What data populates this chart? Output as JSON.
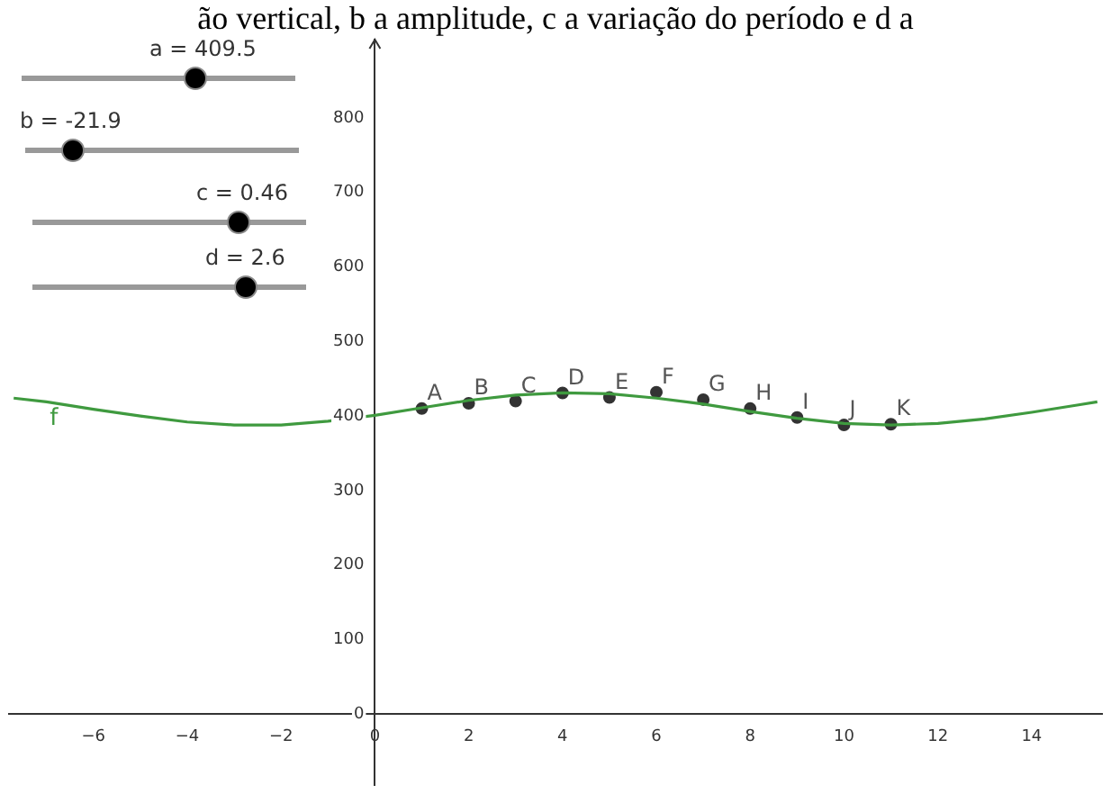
{
  "chart_data": {
    "type": "line",
    "title": "ão vertical, b a amplitude, c a variação do período e d a",
    "xlim": [
      -7.8,
      15.5
    ],
    "ylim": [
      -95,
      905
    ],
    "xticks": [
      -6,
      -4,
      -2,
      0,
      2,
      4,
      6,
      8,
      10,
      12,
      14
    ],
    "yticks": [
      0,
      100,
      200,
      300,
      400,
      500,
      600,
      700,
      800
    ],
    "grid": false,
    "legend": false,
    "series": [
      {
        "name": "f",
        "color": "#3f9a3f",
        "marker": "none",
        "x": [
          -7.7,
          -7,
          -6,
          -5,
          -4,
          -3,
          -2,
          -1,
          0,
          1,
          2,
          3,
          4,
          5,
          6,
          7,
          8,
          9,
          10,
          11,
          12,
          13,
          14,
          15,
          15.4
        ],
        "values": [
          424,
          419,
          409,
          400,
          392,
          388,
          388,
          393,
          401,
          411,
          421,
          428,
          431,
          430,
          424,
          416,
          406,
          397,
          390,
          388,
          390,
          396,
          405,
          415,
          419
        ]
      },
      {
        "type": "scatter",
        "color": "#333333",
        "marker": "circle",
        "x": [
          1,
          2,
          3,
          4,
          5,
          6,
          7,
          8,
          9,
          10,
          11
        ],
        "values": [
          410,
          417,
          420,
          431,
          425,
          432,
          422,
          410,
          398,
          388,
          389
        ]
      }
    ],
    "annotations": [
      "a = 409.5",
      "b = -21.9",
      "c = 0.46",
      "d = 2.6",
      {
        "text": "A",
        "x": 1,
        "y": 410
      },
      {
        "text": "B",
        "x": 2,
        "y": 417
      },
      {
        "text": "C",
        "x": 3,
        "y": 420
      },
      {
        "text": "D",
        "x": 4,
        "y": 431
      },
      {
        "text": "E",
        "x": 5,
        "y": 425
      },
      {
        "text": "F",
        "x": 6,
        "y": 432
      },
      {
        "text": "G",
        "x": 7,
        "y": 422
      },
      {
        "text": "H",
        "x": 8,
        "y": 410
      },
      {
        "text": "I",
        "x": 9,
        "y": 398
      },
      {
        "text": "J",
        "x": 10,
        "y": 388
      },
      {
        "text": "K",
        "x": 11,
        "y": 389
      }
    ]
  }
}
